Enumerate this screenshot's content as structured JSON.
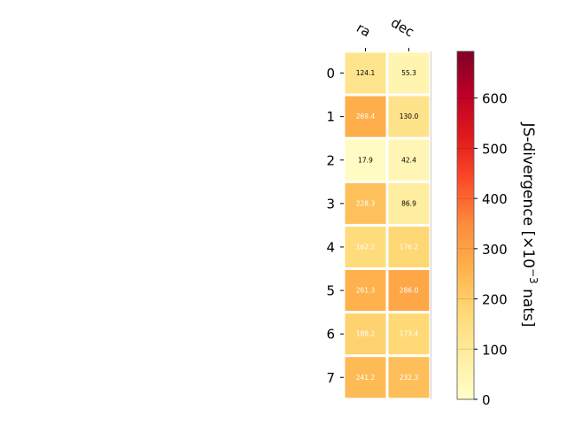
{
  "chart_data": {
    "type": "heatmap",
    "title": "",
    "columns": [
      "ra",
      "dec"
    ],
    "rows": [
      "0",
      "1",
      "2",
      "3",
      "4",
      "5",
      "6",
      "7"
    ],
    "values": [
      [
        124.1,
        55.3
      ],
      [
        269.4,
        130.0
      ],
      [
        17.9,
        42.4
      ],
      [
        228.3,
        86.9
      ],
      [
        162.2,
        176.2
      ],
      [
        261.3,
        286.0
      ],
      [
        188.2,
        173.4
      ],
      [
        241.2,
        232.3
      ]
    ],
    "value_labels": [
      [
        "124.1",
        "55.3"
      ],
      [
        "269.4",
        "130.0"
      ],
      [
        "17.9",
        "42.4"
      ],
      [
        "228.3",
        "86.9"
      ],
      [
        "162.2",
        "176.2"
      ],
      [
        "261.3",
        "286.0"
      ],
      [
        "188.2",
        "173.4"
      ],
      [
        "241.2",
        "232.3"
      ]
    ],
    "colorbar": {
      "label_main": "JS-divergence [×10",
      "label_exp": "−3",
      "label_tail": " nats]",
      "vmin": 0,
      "vmax": 693,
      "ticks": [
        0,
        100,
        200,
        300,
        400,
        500,
        600
      ],
      "colormap": "YlOrRd"
    }
  }
}
